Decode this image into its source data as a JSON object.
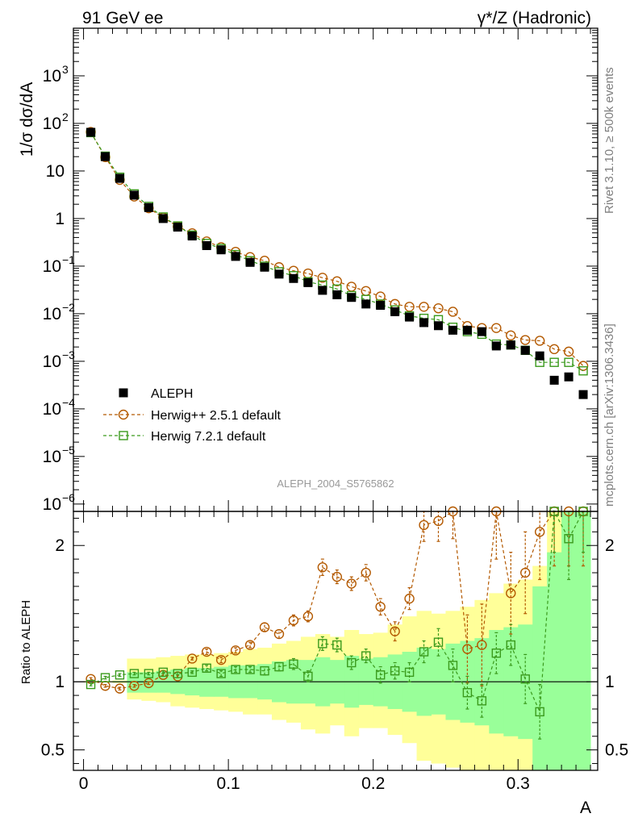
{
  "header": {
    "left": "91 GeV ee",
    "right": "γ*/Z (Hadronic)"
  },
  "side_text": {
    "rivet": "Rivet 3.1.10, ≥ 500k events",
    "mcplots": "mcplots.cern.ch [arXiv:1306.3436]"
  },
  "analysis_id": "ALEPH_2004_S5765862",
  "colors": {
    "data": "#000000",
    "herwigpp": "#b35900",
    "herwig7": "#3a9a1c",
    "band_outer": "#ffff99",
    "band_inner": "#99ff99"
  },
  "chart_data": [
    {
      "type": "scatter",
      "panel": "main",
      "ylabel": "1/σ  dσ/dA",
      "ylog": true,
      "ylim": [
        7e-07,
        10000
      ],
      "xlim": [
        -0.007,
        0.355
      ],
      "yticks": [
        {
          "v": 1e-06,
          "base": "10",
          "exp": "−6"
        },
        {
          "v": 1e-05,
          "base": "10",
          "exp": "−5"
        },
        {
          "v": 0.0001,
          "base": "10",
          "exp": "−4"
        },
        {
          "v": 0.001,
          "base": "10",
          "exp": "−3"
        },
        {
          "v": 0.01,
          "base": "10",
          "exp": "−2"
        },
        {
          "v": 0.1,
          "base": "10",
          "exp": "−1"
        },
        {
          "v": 1,
          "base": "1",
          "exp": ""
        },
        {
          "v": 10,
          "base": "10",
          "exp": ""
        },
        {
          "v": 100,
          "base": "10",
          "exp": "2"
        },
        {
          "v": 1000,
          "base": "10",
          "exp": "3"
        }
      ],
      "legend_position": "bottom-left",
      "x": [
        0.005,
        0.015,
        0.025,
        0.035,
        0.045,
        0.055,
        0.065,
        0.075,
        0.085,
        0.095,
        0.105,
        0.115,
        0.125,
        0.135,
        0.145,
        0.155,
        0.165,
        0.175,
        0.185,
        0.195,
        0.205,
        0.215,
        0.225,
        0.235,
        0.245,
        0.255,
        0.265,
        0.275,
        0.285,
        0.295,
        0.305,
        0.315,
        0.325,
        0.335,
        0.345
      ],
      "series": [
        {
          "name": "ALEPH",
          "marker": "filled-square",
          "values": [
            65,
            20,
            7,
            3.1,
            1.7,
            1.0,
            0.66,
            0.43,
            0.27,
            0.22,
            0.16,
            0.12,
            0.095,
            0.068,
            0.055,
            0.045,
            0.031,
            0.025,
            0.022,
            0.016,
            0.015,
            0.011,
            0.0085,
            0.0065,
            0.0056,
            0.0045,
            0.0045,
            0.0042,
            0.0021,
            0.0022,
            0.0017,
            0.0013,
            0.0004,
            0.00047,
            0.0002
          ]
        },
        {
          "name": "Herwig++ 2.5.1 default",
          "marker": "open-circle",
          "line": "dashed",
          "values": [
            66,
            19.5,
            6.5,
            2.9,
            1.65,
            1.05,
            0.68,
            0.49,
            0.33,
            0.25,
            0.2,
            0.155,
            0.13,
            0.095,
            0.08,
            0.07,
            0.057,
            0.048,
            0.037,
            0.03,
            0.023,
            0.016,
            0.014,
            0.014,
            0.013,
            0.011,
            0.0055,
            0.005,
            0.005,
            0.0035,
            0.0028,
            0.0027,
            0.0018,
            0.0016,
            0.0008
          ]
        },
        {
          "name": "Herwig 7.2.1 default",
          "marker": "open-square",
          "line": "dashed",
          "values": [
            64,
            20.5,
            7.4,
            3.3,
            1.8,
            1.08,
            0.7,
            0.45,
            0.3,
            0.235,
            0.175,
            0.13,
            0.1,
            0.076,
            0.063,
            0.047,
            0.04,
            0.033,
            0.024,
            0.02,
            0.016,
            0.012,
            0.009,
            0.008,
            0.0075,
            0.0052,
            0.0042,
            0.0037,
            0.0023,
            0.0022,
            0.0017,
            0.00095,
            0.00095,
            0.00095,
            0.00063
          ]
        }
      ]
    },
    {
      "type": "scatter",
      "panel": "ratio",
      "ylabel": "Ratio to ALEPH",
      "xlabel": "A",
      "ylim": [
        0.35,
        2.25
      ],
      "xlim": [
        -0.007,
        0.355
      ],
      "yticks": [
        {
          "v": 0.5,
          "label": "0.5"
        },
        {
          "v": 1,
          "label": "1"
        },
        {
          "v": 2,
          "label": "2"
        }
      ],
      "xticks": [
        {
          "v": 0,
          "label": "0"
        },
        {
          "v": 0.1,
          "label": "0.1"
        },
        {
          "v": 0.2,
          "label": "0.2"
        },
        {
          "v": 0.3,
          "label": "0.3"
        }
      ],
      "x": [
        0.005,
        0.015,
        0.025,
        0.035,
        0.045,
        0.055,
        0.065,
        0.075,
        0.085,
        0.095,
        0.105,
        0.115,
        0.125,
        0.135,
        0.145,
        0.155,
        0.165,
        0.175,
        0.185,
        0.195,
        0.205,
        0.215,
        0.225,
        0.235,
        0.245,
        0.255,
        0.265,
        0.275,
        0.285,
        0.295,
        0.305,
        0.315,
        0.325,
        0.335,
        0.345
      ],
      "band_outer": {
        "lo": [
          0.995,
          0.995,
          0.99,
          0.87,
          0.86,
          0.85,
          0.82,
          0.81,
          0.8,
          0.79,
          0.78,
          0.76,
          0.76,
          0.72,
          0.7,
          0.65,
          0.62,
          0.68,
          0.6,
          0.66,
          0.66,
          0.61,
          0.55,
          0.42,
          0.4,
          0.37,
          0.3,
          0.3,
          0.3,
          0.3,
          0.3,
          0.3,
          0.3,
          0.3,
          0.3
        ],
        "hi": [
          1.005,
          1.005,
          1.01,
          1.17,
          1.17,
          1.18,
          1.19,
          1.2,
          1.2,
          1.21,
          1.22,
          1.24,
          1.25,
          1.28,
          1.3,
          1.33,
          1.35,
          1.33,
          1.38,
          1.35,
          1.36,
          1.42,
          1.48,
          1.52,
          1.5,
          1.52,
          1.55,
          1.6,
          1.65,
          1.72,
          1.75,
          1.85,
          2.3,
          2.3,
          2.3
        ]
      },
      "band_inner": {
        "lo": [
          0.998,
          0.998,
          0.995,
          0.92,
          0.92,
          0.92,
          0.91,
          0.9,
          0.89,
          0.89,
          0.88,
          0.88,
          0.87,
          0.85,
          0.84,
          0.84,
          0.82,
          0.84,
          0.81,
          0.83,
          0.82,
          0.8,
          0.78,
          0.75,
          0.76,
          0.72,
          0.7,
          0.68,
          0.62,
          0.6,
          0.58,
          0.3,
          0.3,
          0.3,
          0.3
        ],
        "hi": [
          1.002,
          1.002,
          1.005,
          1.07,
          1.07,
          1.08,
          1.09,
          1.1,
          1.1,
          1.11,
          1.12,
          1.12,
          1.13,
          1.15,
          1.16,
          1.16,
          1.18,
          1.16,
          1.19,
          1.17,
          1.18,
          1.2,
          1.22,
          1.25,
          1.24,
          1.28,
          1.3,
          1.32,
          1.38,
          1.4,
          1.42,
          1.7,
          1.95,
          2.3,
          2.3
        ]
      },
      "series": [
        {
          "name": "Herwig++ 2.5.1 default",
          "values": [
            1.02,
            0.97,
            0.95,
            0.97,
            0.99,
            1.05,
            1.04,
            1.17,
            1.22,
            1.16,
            1.23,
            1.27,
            1.4,
            1.35,
            1.45,
            1.48,
            1.84,
            1.77,
            1.72,
            1.8,
            1.55,
            1.37,
            1.61,
            2.15,
            2.18,
            2.25,
            1.24,
            1.27,
            2.25,
            1.65,
            1.8,
            2.1,
            2.25,
            2.25,
            2.25
          ],
          "err": [
            0.01,
            0.01,
            0.01,
            0.01,
            0.01,
            0.01,
            0.01,
            0.01,
            0.02,
            0.02,
            0.02,
            0.02,
            0.03,
            0.03,
            0.04,
            0.04,
            0.06,
            0.05,
            0.05,
            0.06,
            0.06,
            0.07,
            0.08,
            0.12,
            0.15,
            0.2,
            0.25,
            0.3,
            0.35,
            0.3,
            0.3,
            0.35,
            0.4,
            0.4,
            0.4
          ]
        },
        {
          "name": "Herwig 7.2.1 default",
          "values": [
            0.98,
            1.03,
            1.05,
            1.06,
            1.06,
            1.07,
            1.06,
            1.07,
            1.1,
            1.06,
            1.09,
            1.09,
            1.08,
            1.11,
            1.13,
            1.04,
            1.28,
            1.27,
            1.14,
            1.19,
            1.05,
            1.08,
            1.07,
            1.22,
            1.29,
            1.12,
            0.92,
            0.86,
            1.21,
            1.27,
            1.02,
            0.78,
            2.25,
            2.05,
            2.25
          ],
          "err": [
            0.01,
            0.01,
            0.01,
            0.01,
            0.01,
            0.01,
            0.01,
            0.01,
            0.02,
            0.02,
            0.02,
            0.02,
            0.03,
            0.03,
            0.04,
            0.04,
            0.05,
            0.05,
            0.05,
            0.05,
            0.06,
            0.06,
            0.07,
            0.08,
            0.1,
            0.12,
            0.12,
            0.12,
            0.15,
            0.15,
            0.18,
            0.2,
            0.3,
            0.3,
            0.3
          ]
        }
      ],
      "reference_line": 1
    }
  ]
}
